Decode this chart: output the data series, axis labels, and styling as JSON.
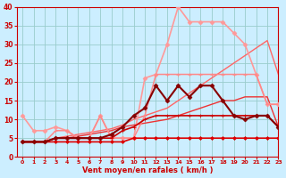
{
  "xlabel": "Vent moyen/en rafales ( km/h )",
  "background_color": "#cceeff",
  "grid_color": "#99cccc",
  "xlim": [
    -0.5,
    23
  ],
  "ylim": [
    0,
    40
  ],
  "yticks": [
    0,
    5,
    10,
    15,
    20,
    25,
    30,
    35,
    40
  ],
  "xticks": [
    0,
    1,
    2,
    3,
    4,
    5,
    6,
    7,
    8,
    9,
    10,
    11,
    12,
    13,
    14,
    15,
    16,
    17,
    18,
    19,
    20,
    21,
    22,
    23
  ],
  "lines": [
    {
      "x": [
        0,
        1,
        2,
        3,
        4,
        5,
        6,
        7,
        8,
        9,
        10,
        11,
        12,
        13,
        14,
        15,
        16,
        17,
        18,
        19,
        20,
        21,
        22,
        23
      ],
      "y": [
        4,
        4,
        4,
        4,
        4,
        4,
        4,
        4,
        4,
        4,
        5,
        5,
        5,
        5,
        5,
        5,
        5,
        5,
        5,
        5,
        5,
        5,
        5,
        5
      ],
      "color": "#dd0000",
      "linewidth": 1.2,
      "marker": "D",
      "markersize": 2.0,
      "zorder": 7
    },
    {
      "x": [
        0,
        1,
        2,
        3,
        4,
        5,
        6,
        7,
        8,
        9,
        10,
        11,
        12,
        13,
        14,
        15,
        16,
        17,
        18,
        19,
        20,
        21,
        22,
        23
      ],
      "y": [
        4,
        4,
        4,
        5,
        5,
        5,
        5,
        5,
        5,
        7,
        8,
        10,
        11,
        11,
        11,
        11,
        11,
        11,
        11,
        11,
        11,
        11,
        11,
        8
      ],
      "color": "#cc0000",
      "linewidth": 1.2,
      "marker": "+",
      "markersize": 3.5,
      "zorder": 6
    },
    {
      "x": [
        0,
        1,
        2,
        3,
        4,
        5,
        6,
        7,
        8,
        9,
        10,
        11,
        12,
        13,
        14,
        15,
        16,
        17,
        18,
        19,
        20,
        21,
        22,
        23
      ],
      "y": [
        4,
        4,
        4,
        5,
        5,
        5,
        5,
        5,
        6,
        8,
        11,
        13,
        19,
        15,
        19,
        16,
        19,
        19,
        15,
        11,
        10,
        11,
        11,
        8
      ],
      "color": "#880000",
      "linewidth": 1.5,
      "marker": "D",
      "markersize": 2.5,
      "zorder": 8
    },
    {
      "x": [
        0,
        1,
        2,
        3,
        4,
        5,
        6,
        7,
        8,
        9,
        10,
        11,
        12,
        13,
        14,
        15,
        16,
        17,
        18,
        19,
        20,
        21,
        22,
        23
      ],
      "y": [
        4,
        4,
        4,
        5,
        5,
        5.5,
        6,
        6.5,
        7,
        8,
        8.5,
        9,
        9.5,
        10,
        11,
        12,
        13,
        14,
        15,
        15,
        16,
        16,
        16,
        8
      ],
      "color": "#ee3333",
      "linewidth": 1.0,
      "marker": null,
      "markersize": 0,
      "zorder": 3
    },
    {
      "x": [
        0,
        1,
        2,
        3,
        4,
        5,
        6,
        7,
        8,
        9,
        10,
        11,
        12,
        13,
        14,
        15,
        16,
        17,
        18,
        19,
        20,
        21,
        22,
        23
      ],
      "y": [
        4,
        4,
        4,
        5,
        5.5,
        6,
        6.5,
        7,
        7.5,
        8.5,
        10,
        11,
        12,
        13,
        15,
        17,
        19,
        21,
        23,
        25,
        27,
        29,
        31,
        22
      ],
      "color": "#ff6666",
      "linewidth": 1.0,
      "marker": null,
      "markersize": 0,
      "zorder": 2
    },
    {
      "x": [
        0,
        1,
        2,
        3,
        4,
        5,
        6,
        7,
        8,
        9,
        10,
        11,
        12,
        13,
        14,
        15,
        16,
        17,
        18,
        19,
        20,
        21,
        22,
        23
      ],
      "y": [
        11,
        7,
        7,
        8,
        7,
        5,
        5,
        11,
        5,
        5,
        5,
        21,
        22,
        30,
        40,
        36,
        36,
        36,
        36,
        33,
        30,
        22,
        14,
        14
      ],
      "color": "#ff9999",
      "linewidth": 1.2,
      "marker": "D",
      "markersize": 2.5,
      "zorder": 4
    },
    {
      "x": [
        0,
        1,
        2,
        3,
        4,
        5,
        6,
        7,
        8,
        9,
        10,
        11,
        12,
        13,
        14,
        15,
        16,
        17,
        18,
        19,
        20,
        21,
        22,
        23
      ],
      "y": [
        4,
        4,
        4,
        7,
        7,
        5,
        5,
        11,
        5,
        5,
        5,
        11,
        22,
        22,
        22,
        22,
        22,
        22,
        22,
        22,
        22,
        22,
        14,
        14
      ],
      "color": "#ff8888",
      "linewidth": 1.1,
      "marker": "+",
      "markersize": 3,
      "zorder": 5
    }
  ]
}
